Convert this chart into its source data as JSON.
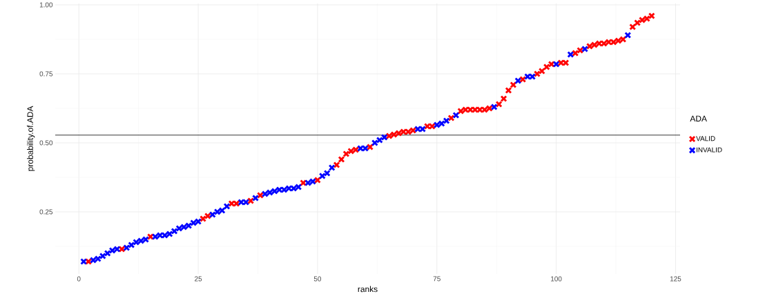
{
  "chart_data": {
    "type": "scatter",
    "xlabel": "ranks",
    "ylabel": "probability.of.ADA",
    "legend_title": "ADA",
    "xlim": [
      -4.95,
      125.95
    ],
    "ylim": [
      0.025,
      1.005
    ],
    "xticks": [
      0,
      25,
      50,
      75,
      100,
      125
    ],
    "yticks": [
      {
        "value": 0.25,
        "label": "0.25"
      },
      {
        "value": 0.5,
        "label": "0.50"
      },
      {
        "value": 0.75,
        "label": "0.75"
      },
      {
        "value": 1.0,
        "label": "1.00"
      }
    ],
    "grid": true,
    "legend": "right",
    "marker": "cross",
    "ref_lines": [
      {
        "axis": "y",
        "value": 0.528,
        "color": "#000000"
      }
    ],
    "series": [
      {
        "name": "VALID",
        "color": "#ff0000",
        "x": [
          2,
          9,
          15,
          26,
          27,
          32,
          33,
          36,
          38,
          47,
          50,
          54,
          55,
          56,
          57,
          58,
          61,
          65,
          66,
          67,
          68,
          69,
          70,
          73,
          74,
          78,
          80,
          81,
          82,
          83,
          84,
          85,
          86,
          88,
          89,
          90,
          91,
          93,
          96,
          97,
          98,
          99,
          101,
          102,
          104,
          105,
          107,
          108,
          109,
          110,
          111,
          112,
          113,
          114,
          116,
          117,
          118,
          119,
          120
        ],
        "values": [
          0.07,
          0.115,
          0.16,
          0.225,
          0.235,
          0.28,
          0.28,
          0.29,
          0.31,
          0.355,
          0.365,
          0.42,
          0.44,
          0.46,
          0.47,
          0.475,
          0.485,
          0.525,
          0.53,
          0.535,
          0.54,
          0.54,
          0.545,
          0.56,
          0.56,
          0.59,
          0.615,
          0.62,
          0.62,
          0.62,
          0.62,
          0.62,
          0.625,
          0.64,
          0.66,
          0.69,
          0.71,
          0.73,
          0.75,
          0.76,
          0.775,
          0.785,
          0.79,
          0.79,
          0.825,
          0.835,
          0.85,
          0.855,
          0.86,
          0.86,
          0.865,
          0.865,
          0.87,
          0.875,
          0.92,
          0.935,
          0.945,
          0.95,
          0.96
        ]
      },
      {
        "name": "INVALID",
        "color": "#0000ff",
        "x": [
          1,
          3,
          4,
          5,
          6,
          7,
          8,
          10,
          11,
          12,
          13,
          14,
          16,
          17,
          18,
          19,
          20,
          21,
          22,
          23,
          24,
          25,
          28,
          29,
          30,
          31,
          34,
          35,
          37,
          39,
          40,
          41,
          42,
          43,
          44,
          45,
          46,
          48,
          49,
          51,
          52,
          53,
          59,
          60,
          62,
          63,
          64,
          71,
          72,
          75,
          76,
          77,
          79,
          87,
          92,
          94,
          95,
          100,
          103,
          106,
          115
        ],
        "values": [
          0.07,
          0.075,
          0.08,
          0.09,
          0.1,
          0.11,
          0.115,
          0.12,
          0.13,
          0.14,
          0.145,
          0.15,
          0.16,
          0.165,
          0.165,
          0.17,
          0.18,
          0.19,
          0.195,
          0.2,
          0.21,
          0.215,
          0.24,
          0.25,
          0.255,
          0.27,
          0.285,
          0.285,
          0.3,
          0.315,
          0.32,
          0.325,
          0.33,
          0.33,
          0.335,
          0.335,
          0.34,
          0.355,
          0.36,
          0.38,
          0.39,
          0.41,
          0.48,
          0.48,
          0.5,
          0.51,
          0.52,
          0.55,
          0.55,
          0.565,
          0.57,
          0.58,
          0.6,
          0.63,
          0.725,
          0.74,
          0.74,
          0.785,
          0.82,
          0.84,
          0.89
        ]
      }
    ]
  }
}
